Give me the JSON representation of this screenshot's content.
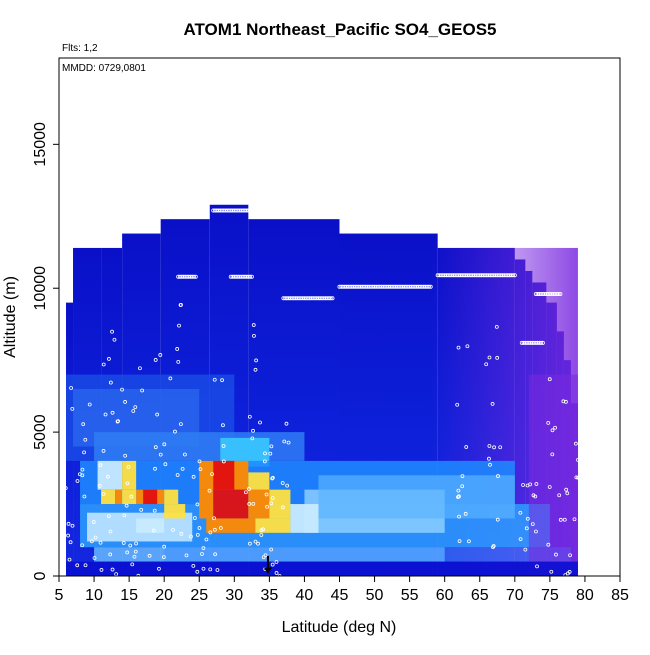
{
  "chart_data": {
    "type": "heatmap",
    "title": "ATOM1 Northeast_Pacific SO4_GEOS5",
    "flights_label": "Flts: 1,2",
    "dates_label": "MMDD: 0729,0801",
    "xlabel": "Latitude (deg N)",
    "ylabel": "Altitude (m)",
    "xlim": [
      5,
      85
    ],
    "ylim": [
      0,
      18000
    ],
    "x_ticks": [
      "5",
      "10",
      "15",
      "20",
      "25",
      "30",
      "35",
      "40",
      "45",
      "50",
      "55",
      "60",
      "65",
      "70",
      "75",
      "80",
      "85"
    ],
    "y_ticks": [
      "0",
      "5000",
      "10000",
      "15000"
    ],
    "grid": false,
    "legend": "none",
    "colors": {
      "background_low": "#0a10d0",
      "mid": "#1e8cff",
      "light": "#c8eaff",
      "yellow": "#ffe040",
      "orange": "#ff8a00",
      "red": "#e01010",
      "purple": "#7a2ae0"
    },
    "marker_lat": 34.8,
    "top_profile": [
      {
        "lat_min": 6.0,
        "lat_max": 7.0,
        "alt_top": 9500
      },
      {
        "lat_min": 7.0,
        "lat_max": 11.0,
        "alt_top": 11400
      },
      {
        "lat_min": 11.0,
        "lat_max": 14.0,
        "alt_top": 11400
      },
      {
        "lat_min": 14.0,
        "lat_max": 19.5,
        "alt_top": 11900
      },
      {
        "lat_min": 19.5,
        "lat_max": 26.5,
        "alt_top": 12400
      },
      {
        "lat_min": 26.5,
        "lat_max": 32.0,
        "alt_top": 12900
      },
      {
        "lat_min": 32.0,
        "lat_max": 45.0,
        "alt_top": 12400
      },
      {
        "lat_min": 45.0,
        "lat_max": 59.0,
        "alt_top": 11900
      },
      {
        "lat_min": 59.0,
        "lat_max": 70.0,
        "alt_top": 11400
      },
      {
        "lat_min": 70.0,
        "lat_max": 71.5,
        "alt_top": 11000
      },
      {
        "lat_min": 71.5,
        "lat_max": 72.5,
        "alt_top": 10600
      },
      {
        "lat_min": 72.5,
        "lat_max": 74.5,
        "alt_top": 10200
      },
      {
        "lat_min": 74.5,
        "lat_max": 76.0,
        "alt_top": 9500
      },
      {
        "lat_min": 76.0,
        "lat_max": 77.0,
        "alt_top": 8500
      },
      {
        "lat_min": 77.0,
        "lat_max": 78.0,
        "alt_top": 7500
      },
      {
        "lat_min": 78.0,
        "lat_max": 79.0,
        "alt_top": 6000
      }
    ],
    "hot_cells": [
      {
        "lat": [
          10.5,
          14.0
        ],
        "alt": [
          3000,
          4000
        ],
        "level": "light"
      },
      {
        "lat": [
          14.0,
          16.0
        ],
        "alt": [
          3000,
          4000
        ],
        "level": "yellow"
      },
      {
        "lat": [
          11.0,
          13.0
        ],
        "alt": [
          2500,
          3000
        ],
        "level": "yellow"
      },
      {
        "lat": [
          13.0,
          14.0
        ],
        "alt": [
          2500,
          3000
        ],
        "level": "orange"
      },
      {
        "lat": [
          16.0,
          20.0
        ],
        "alt": [
          2500,
          3000
        ],
        "level": "orange"
      },
      {
        "lat": [
          17.0,
          19.0
        ],
        "alt": [
          2500,
          3000
        ],
        "level": "red"
      },
      {
        "lat": [
          14.0,
          16.0
        ],
        "alt": [
          2500,
          3000
        ],
        "level": "yellow"
      },
      {
        "lat": [
          20.0,
          22.0
        ],
        "alt": [
          2500,
          3000
        ],
        "level": "yellow"
      },
      {
        "lat": [
          25.0,
          32.0
        ],
        "alt": [
          3000,
          4000
        ],
        "level": "orange"
      },
      {
        "lat": [
          27.0,
          30.0
        ],
        "alt": [
          3000,
          4000
        ],
        "level": "red"
      },
      {
        "lat": [
          25.0,
          27.0
        ],
        "alt": [
          2000,
          3000
        ],
        "level": "orange"
      },
      {
        "lat": [
          27.0,
          32.0
        ],
        "alt": [
          2000,
          3000
        ],
        "level": "red"
      },
      {
        "lat": [
          32.0,
          35.0
        ],
        "alt": [
          2000,
          3000
        ],
        "level": "orange"
      },
      {
        "lat": [
          35.0,
          38.0
        ],
        "alt": [
          2000,
          3000
        ],
        "level": "yellow"
      },
      {
        "lat": [
          26.0,
          33.0
        ],
        "alt": [
          1500,
          2000
        ],
        "level": "orange"
      },
      {
        "lat": [
          33.0,
          38.0
        ],
        "alt": [
          1500,
          2000
        ],
        "level": "yellow"
      },
      {
        "lat": [
          38.0,
          42.0
        ],
        "alt": [
          1500,
          2500
        ],
        "level": "light"
      },
      {
        "lat": [
          32.0,
          35.0
        ],
        "alt": [
          3000,
          3600
        ],
        "level": "yellow"
      },
      {
        "lat": [
          16.0,
          20.0
        ],
        "alt": [
          1500,
          2000
        ],
        "level": "light"
      },
      {
        "lat": [
          20.0,
          23.0
        ],
        "alt": [
          2000,
          2500
        ],
        "level": "yellow"
      }
    ],
    "flight_track_segments": [
      {
        "lat": [
          27.0,
          32.5
        ],
        "alt": 12700
      },
      {
        "lat": [
          29.5,
          32.5
        ],
        "alt": 10400
      },
      {
        "lat": [
          22.0,
          24.5
        ],
        "alt": 10400
      },
      {
        "lat": [
          37.0,
          44.0
        ],
        "alt": 9650
      },
      {
        "lat": [
          45.0,
          58.0
        ],
        "alt": 10050
      },
      {
        "lat": [
          59.0,
          70.0
        ],
        "alt": 10450
      },
      {
        "lat": [
          73.0,
          76.5
        ],
        "alt": 9800
      },
      {
        "lat": [
          71.0,
          74.0
        ],
        "alt": 8100
      }
    ]
  }
}
